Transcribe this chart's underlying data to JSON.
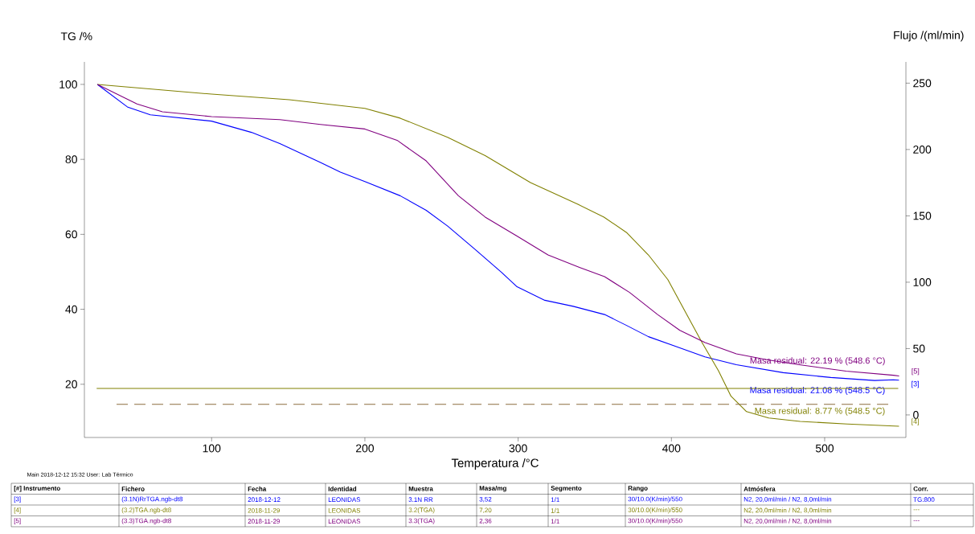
{
  "chart_data": {
    "type": "line",
    "xlabel": "Temperatura /°C",
    "ylabel": "TG /%",
    "y2label": "Flujo /(ml/min)",
    "xlim": [
      17,
      553
    ],
    "ylim": [
      5.8,
      106
    ],
    "y2lim": [
      -17,
      266
    ],
    "xticks": [
      100,
      200,
      300,
      400,
      500
    ],
    "yticks": [
      20,
      40,
      60,
      80,
      100
    ],
    "y2ticks": [
      0,
      50,
      100,
      150,
      200,
      250
    ],
    "series": [
      {
        "name": "[3]",
        "color": "#0000ff",
        "line_style": "solid",
        "x": [
          25.5,
          45,
          60,
          100,
          126,
          144.5,
          171,
          184,
          200,
          223,
          240,
          254,
          271,
          289,
          299,
          317.4,
          335.9,
          356.4,
          370.7,
          385,
          401.4,
          421.9,
          442.4,
          473,
          504,
          532.6,
          544.9,
          548.5
        ],
        "values": [
          100,
          94,
          91.9,
          90.2,
          87.2,
          84.2,
          79.2,
          76.6,
          74.1,
          70.3,
          66.4,
          62.2,
          56.3,
          49.9,
          46.1,
          42.4,
          40.8,
          38.6,
          35.7,
          32.7,
          30.3,
          27.3,
          25.2,
          23.1,
          21.8,
          21.0,
          21.2,
          21.1
        ]
      },
      {
        "name": "[4]",
        "color": "#808000",
        "line_style": "solid",
        "x": [
          25.5,
          100,
          150.7,
          200,
          223,
          254,
          278.5,
          308,
          339,
          356,
          371,
          385,
          397.7,
          410,
          420,
          430.7,
          438.9,
          449,
          463.5,
          484,
          514.8,
          548.5
        ],
        "values": [
          100,
          97.4,
          95.9,
          93.6,
          91.0,
          85.9,
          81,
          73.8,
          68.0,
          64.6,
          60.4,
          54.5,
          47.9,
          38.6,
          31.1,
          23.6,
          16.8,
          12.7,
          11.0,
          10.1,
          9.4,
          8.8
        ]
      },
      {
        "name": "[5]",
        "color": "#800080",
        "line_style": "solid",
        "x": [
          25.5,
          51.3,
          67.9,
          100,
          144.5,
          171,
          200,
          221,
          240,
          261,
          278.5,
          299,
          319.5,
          340,
          356.4,
          372.7,
          391,
          405.5,
          422,
          442.4,
          462.9,
          483.4,
          514,
          544.9,
          548.6
        ],
        "values": [
          100,
          94.8,
          92.7,
          91.4,
          90.6,
          89.3,
          88.1,
          85.1,
          79.6,
          70.3,
          64.6,
          59.6,
          54.5,
          51.2,
          48.7,
          44.5,
          38.6,
          34.4,
          31.1,
          28.1,
          26.5,
          25.2,
          23.5,
          22.4,
          22.2
        ]
      },
      {
        "color": "#808000",
        "axis": "y2",
        "line_style": "solid",
        "x": [
          25,
          548
        ],
        "values": [
          20,
          20
        ]
      },
      {
        "color": "#8c6d3f",
        "axis": "y2",
        "line_style": "dashed",
        "x": [
          38,
          542
        ],
        "values": [
          8,
          8
        ]
      }
    ],
    "annotations": [
      "Masa residual: 21.08 % (548.5 °C)",
      "Masa residual: 8.77 % (548.5 °C)",
      "Masa residual: 22.19 % (548.6 °C)",
      "Main   2018-12-12 15:32   User: Lab Térmico",
      "[#] Instrumento",
      "Fichero",
      "Fecha",
      "Identidad",
      "Muestra",
      "Masa/mg",
      "Segmento",
      "Rango",
      "Atmósfera",
      "Corr.",
      "[3]",
      "(3.1N)RrTGA.ngb-dt8",
      "2018-12-12",
      "LEONIDAS",
      "3.1N RR",
      "3,52",
      "1/1",
      "30/10.0(K/min)/550",
      "N2, 20,0ml/min / N2, 8,0ml/min",
      "TG:800",
      "[4]",
      "(3.2)TGA.ngb-dt8",
      "2018-11-29",
      "LEONIDAS",
      "3.2(TGA)",
      "7,20",
      "1/1",
      "30/10.0(K/min)/550",
      "N2, 20,0ml/min / N2, 8,0ml/min",
      "---",
      "[5]",
      "(3.3)TGA.ngb-dt8",
      "2018-11-29",
      "LEONIDAS",
      "3.3(TGA)",
      "2,36",
      "1/1",
      "30/10.0(K/min)/550",
      "N2, 20,0ml/min / N2, 8,0ml/min",
      "---"
    ]
  }
}
